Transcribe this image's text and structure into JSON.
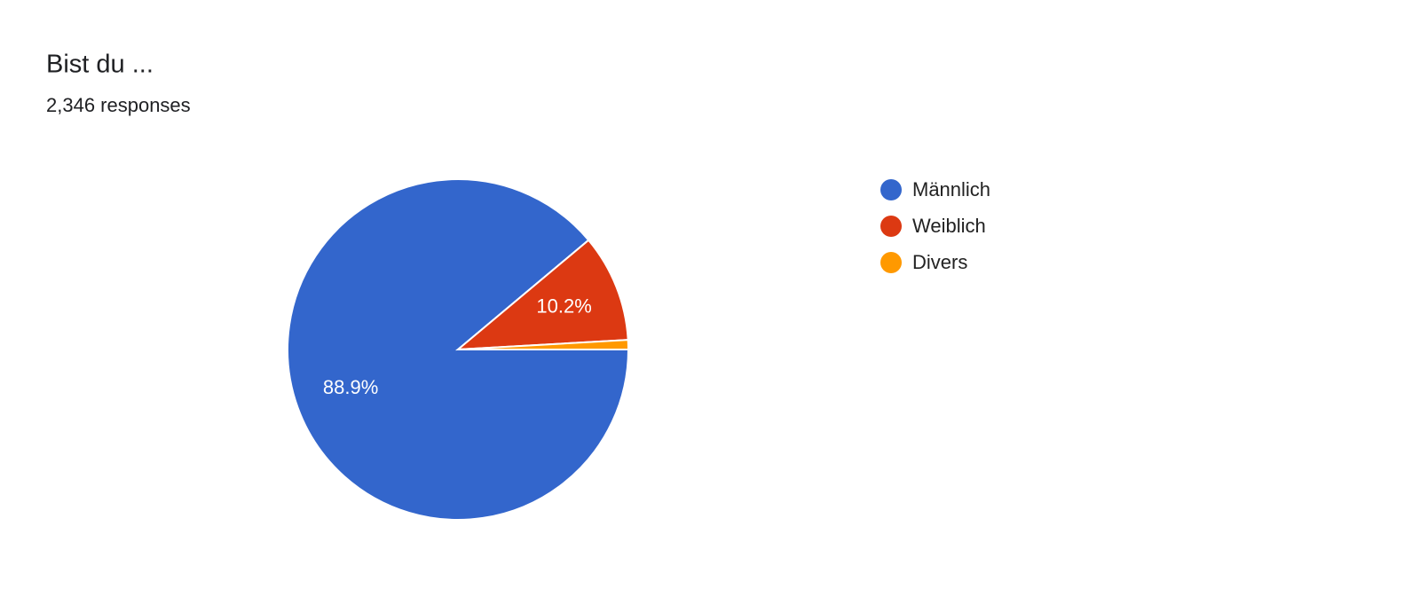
{
  "chart_data": {
    "type": "pie",
    "title": "Bist du ...",
    "subtitle": "2,346 responses",
    "categories": [
      "Männlich",
      "Weiblich",
      "Divers"
    ],
    "values": [
      88.9,
      10.2,
      0.9
    ],
    "value_labels": [
      "88.9%",
      "10.2%",
      null
    ],
    "colors": [
      "#3366cc",
      "#dc3912",
      "#ff9900"
    ],
    "legend": "right"
  }
}
